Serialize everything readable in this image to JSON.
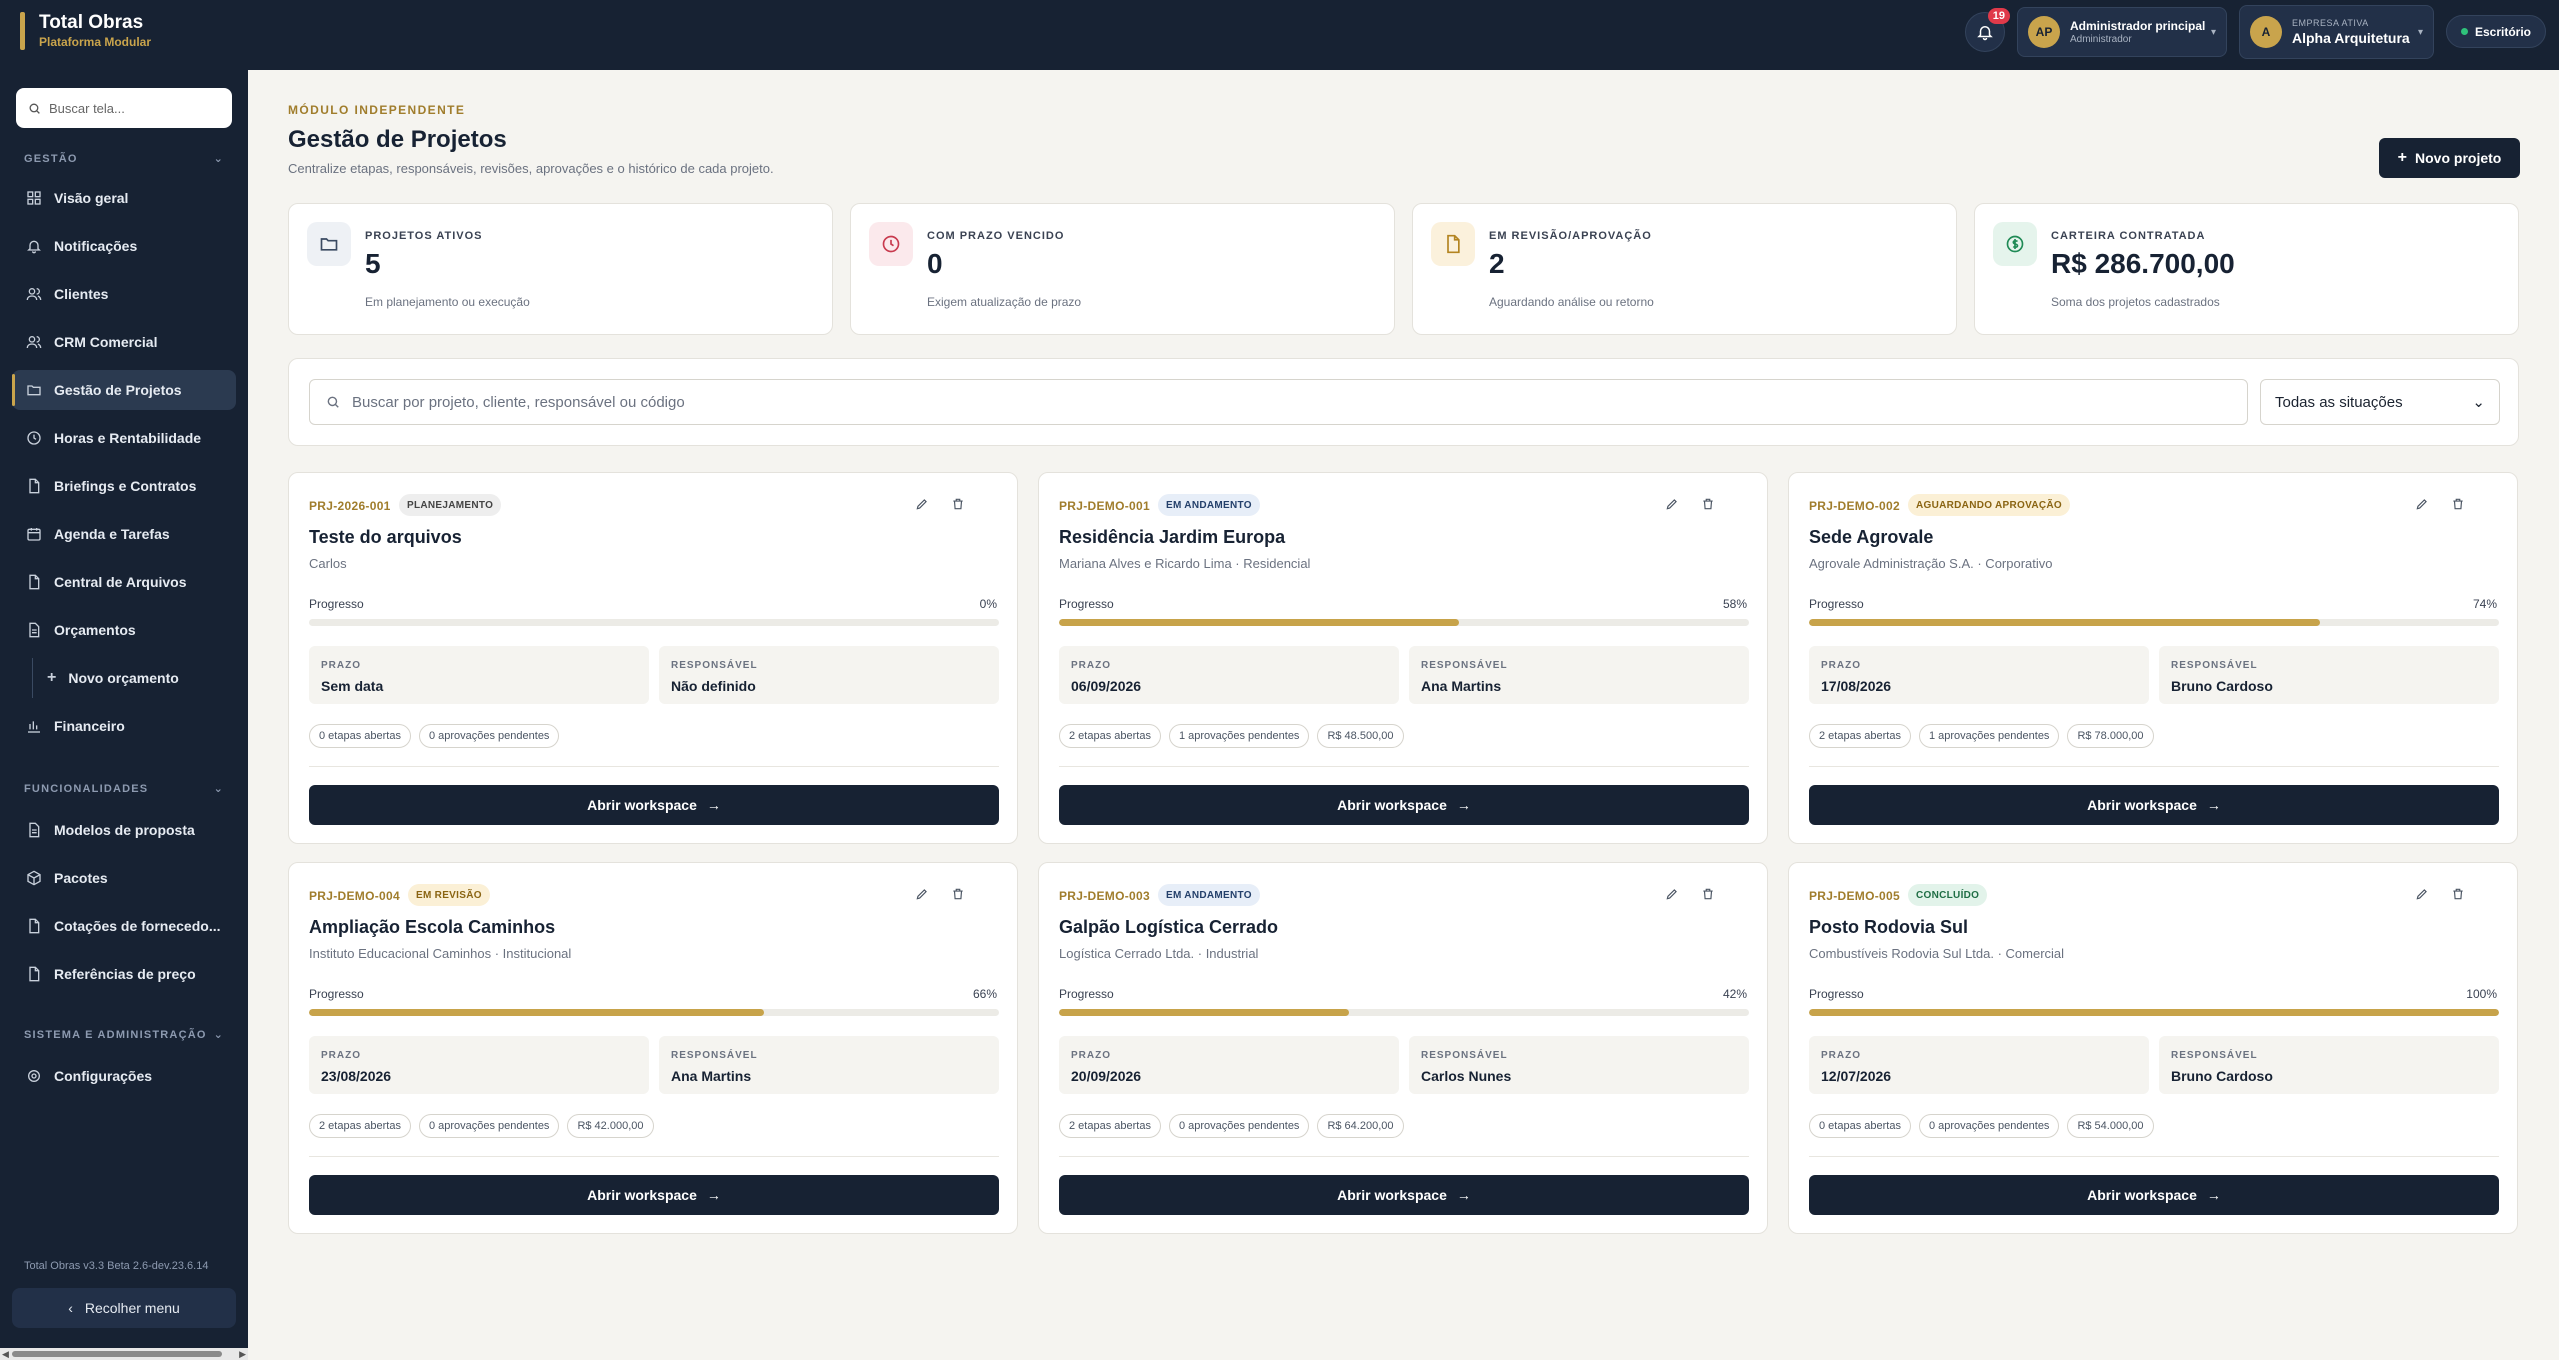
{
  "brand": {
    "title": "Total Obras",
    "subtitle": "Plataforma Modular"
  },
  "topbar": {
    "notifications_count": "19",
    "user": {
      "initials": "AP",
      "name": "Administrador principal",
      "role": "Administrador"
    },
    "company": {
      "initial": "A",
      "label": "EMPRESA ATIVA",
      "name": "Alpha Arquitetura"
    },
    "office_label": "Escritório"
  },
  "sidebar": {
    "search_placeholder": "Buscar tela...",
    "section_gestao": "GESTÃO",
    "items": [
      {
        "label": "Visão geral",
        "icon": "grid-icon"
      },
      {
        "label": "Notificações",
        "icon": "bell-icon"
      },
      {
        "label": "Clientes",
        "icon": "users-icon"
      },
      {
        "label": "CRM Comercial",
        "icon": "users-icon"
      },
      {
        "label": "Gestão de Projetos",
        "icon": "folder-icon",
        "active": true
      },
      {
        "label": "Horas e Rentabilidade",
        "icon": "clock-icon"
      },
      {
        "label": "Briefings e Contratos",
        "icon": "file-icon"
      },
      {
        "label": "Agenda e Tarefas",
        "icon": "calendar-icon"
      },
      {
        "label": "Central de Arquivos",
        "icon": "file-icon"
      },
      {
        "label": "Orçamentos",
        "icon": "file-list-icon"
      },
      {
        "label": "Novo orçamento",
        "icon": "plus-icon"
      },
      {
        "label": "Financeiro",
        "icon": "chart-icon"
      }
    ],
    "section_funcionalidades": "FUNCIONALIDADES",
    "func_items": [
      {
        "label": "Modelos de proposta",
        "icon": "file-list-icon"
      },
      {
        "label": "Pacotes",
        "icon": "package-icon"
      },
      {
        "label": "Cotações de fornecedo...",
        "icon": "file-icon"
      },
      {
        "label": "Referências de preço",
        "icon": "file-icon"
      }
    ],
    "section_sistema": "SISTEMA E ADMINISTRAÇÃO",
    "sys_items": [
      {
        "label": "Configurações",
        "icon": "gear-icon"
      }
    ],
    "version": "Total Obras v3.3 Beta 2.6-dev.23.6.14",
    "collapse_label": "Recolher menu"
  },
  "header": {
    "module_label": "MÓDULO INDEPENDENTE",
    "title": "Gestão de Projetos",
    "subtitle": "Centralize etapas, responsáveis, revisões, aprovações e o histórico de cada projeto.",
    "new_button": "Novo projeto"
  },
  "kpis": [
    {
      "label": "PROJETOS ATIVOS",
      "value": "5",
      "sub": "Em planejamento ou execução",
      "icon": "folder-icon",
      "bg": "#eef1f5",
      "color": "#3a4a62"
    },
    {
      "label": "COM PRAZO VENCIDO",
      "value": "0",
      "sub": "Exigem atualização de prazo",
      "icon": "clock-icon",
      "bg": "#fbe9ec",
      "color": "#c83a4e"
    },
    {
      "label": "EM REVISÃO/APROVAÇÃO",
      "value": "2",
      "sub": "Aguardando análise ou retorno",
      "icon": "file-icon",
      "bg": "#fbf1dc",
      "color": "#b38420"
    },
    {
      "label": "CARTEIRA CONTRATADA",
      "value": "R$ 286.700,00",
      "sub": "Soma dos projetos cadastrados",
      "icon": "dollar-icon",
      "bg": "#e5f4ec",
      "color": "#1f8a55"
    }
  ],
  "filter": {
    "search_placeholder": "Buscar por projeto, cliente, responsável ou código",
    "status_selected": "Todas as situações"
  },
  "labels": {
    "progress": "Progresso",
    "deadline": "PRAZO",
    "responsible": "RESPONSÁVEL",
    "open_workspace": "Abrir workspace"
  },
  "projects": [
    {
      "code": "PRJ-2026-001",
      "status": "PLANEJAMENTO",
      "status_bg": "#eeeeee",
      "status_color": "#444444",
      "name": "Teste do arquivos",
      "client": "Carlos",
      "progress": 0,
      "progress_label": "0%",
      "deadline": "Sem data",
      "responsible": "Não definido",
      "chips": [
        "0 etapas abertas",
        "0 aprovações pendentes"
      ]
    },
    {
      "code": "PRJ-DEMO-001",
      "status": "EM ANDAMENTO",
      "status_bg": "#e7eef8",
      "status_color": "#24406b",
      "name": "Residência Jardim Europa",
      "client": "Mariana Alves e Ricardo Lima · Residencial",
      "progress": 58,
      "progress_label": "58%",
      "deadline": "06/09/2026",
      "responsible": "Ana Martins",
      "chips": [
        "2 etapas abertas",
        "1 aprovações pendentes",
        "R$ 48.500,00"
      ]
    },
    {
      "code": "PRJ-DEMO-002",
      "status": "AGUARDANDO APROVAÇÃO",
      "status_bg": "#fbf0d6",
      "status_color": "#8a6412",
      "name": "Sede Agrovale",
      "client": "Agrovale Administração S.A. · Corporativo",
      "progress": 74,
      "progress_label": "74%",
      "deadline": "17/08/2026",
      "responsible": "Bruno Cardoso",
      "chips": [
        "2 etapas abertas",
        "1 aprovações pendentes",
        "R$ 78.000,00"
      ]
    },
    {
      "code": "PRJ-DEMO-004",
      "status": "EM REVISÃO",
      "status_bg": "#fbf0d6",
      "status_color": "#8a6412",
      "name": "Ampliação Escola Caminhos",
      "client": "Instituto Educacional Caminhos · Institucional",
      "progress": 66,
      "progress_label": "66%",
      "deadline": "23/08/2026",
      "responsible": "Ana Martins",
      "chips": [
        "2 etapas abertas",
        "0 aprovações pendentes",
        "R$ 42.000,00"
      ]
    },
    {
      "code": "PRJ-DEMO-003",
      "status": "EM ANDAMENTO",
      "status_bg": "#e7eef8",
      "status_color": "#24406b",
      "name": "Galpão Logística Cerrado",
      "client": "Logística Cerrado Ltda. · Industrial",
      "progress": 42,
      "progress_label": "42%",
      "deadline": "20/09/2026",
      "responsible": "Carlos Nunes",
      "chips": [
        "2 etapas abertas",
        "0 aprovações pendentes",
        "R$ 64.200,00"
      ]
    },
    {
      "code": "PRJ-DEMO-005",
      "status": "CONCLUÍDO",
      "status_bg": "#e2f3ea",
      "status_color": "#1f6e45",
      "name": "Posto Rodovia Sul",
      "client": "Combustíveis Rodovia Sul Ltda. · Comercial",
      "progress": 100,
      "progress_label": "100%",
      "deadline": "12/07/2026",
      "responsible": "Bruno Cardoso",
      "chips": [
        "0 etapas abertas",
        "0 aprovações pendentes",
        "R$ 54.000,00"
      ]
    }
  ]
}
